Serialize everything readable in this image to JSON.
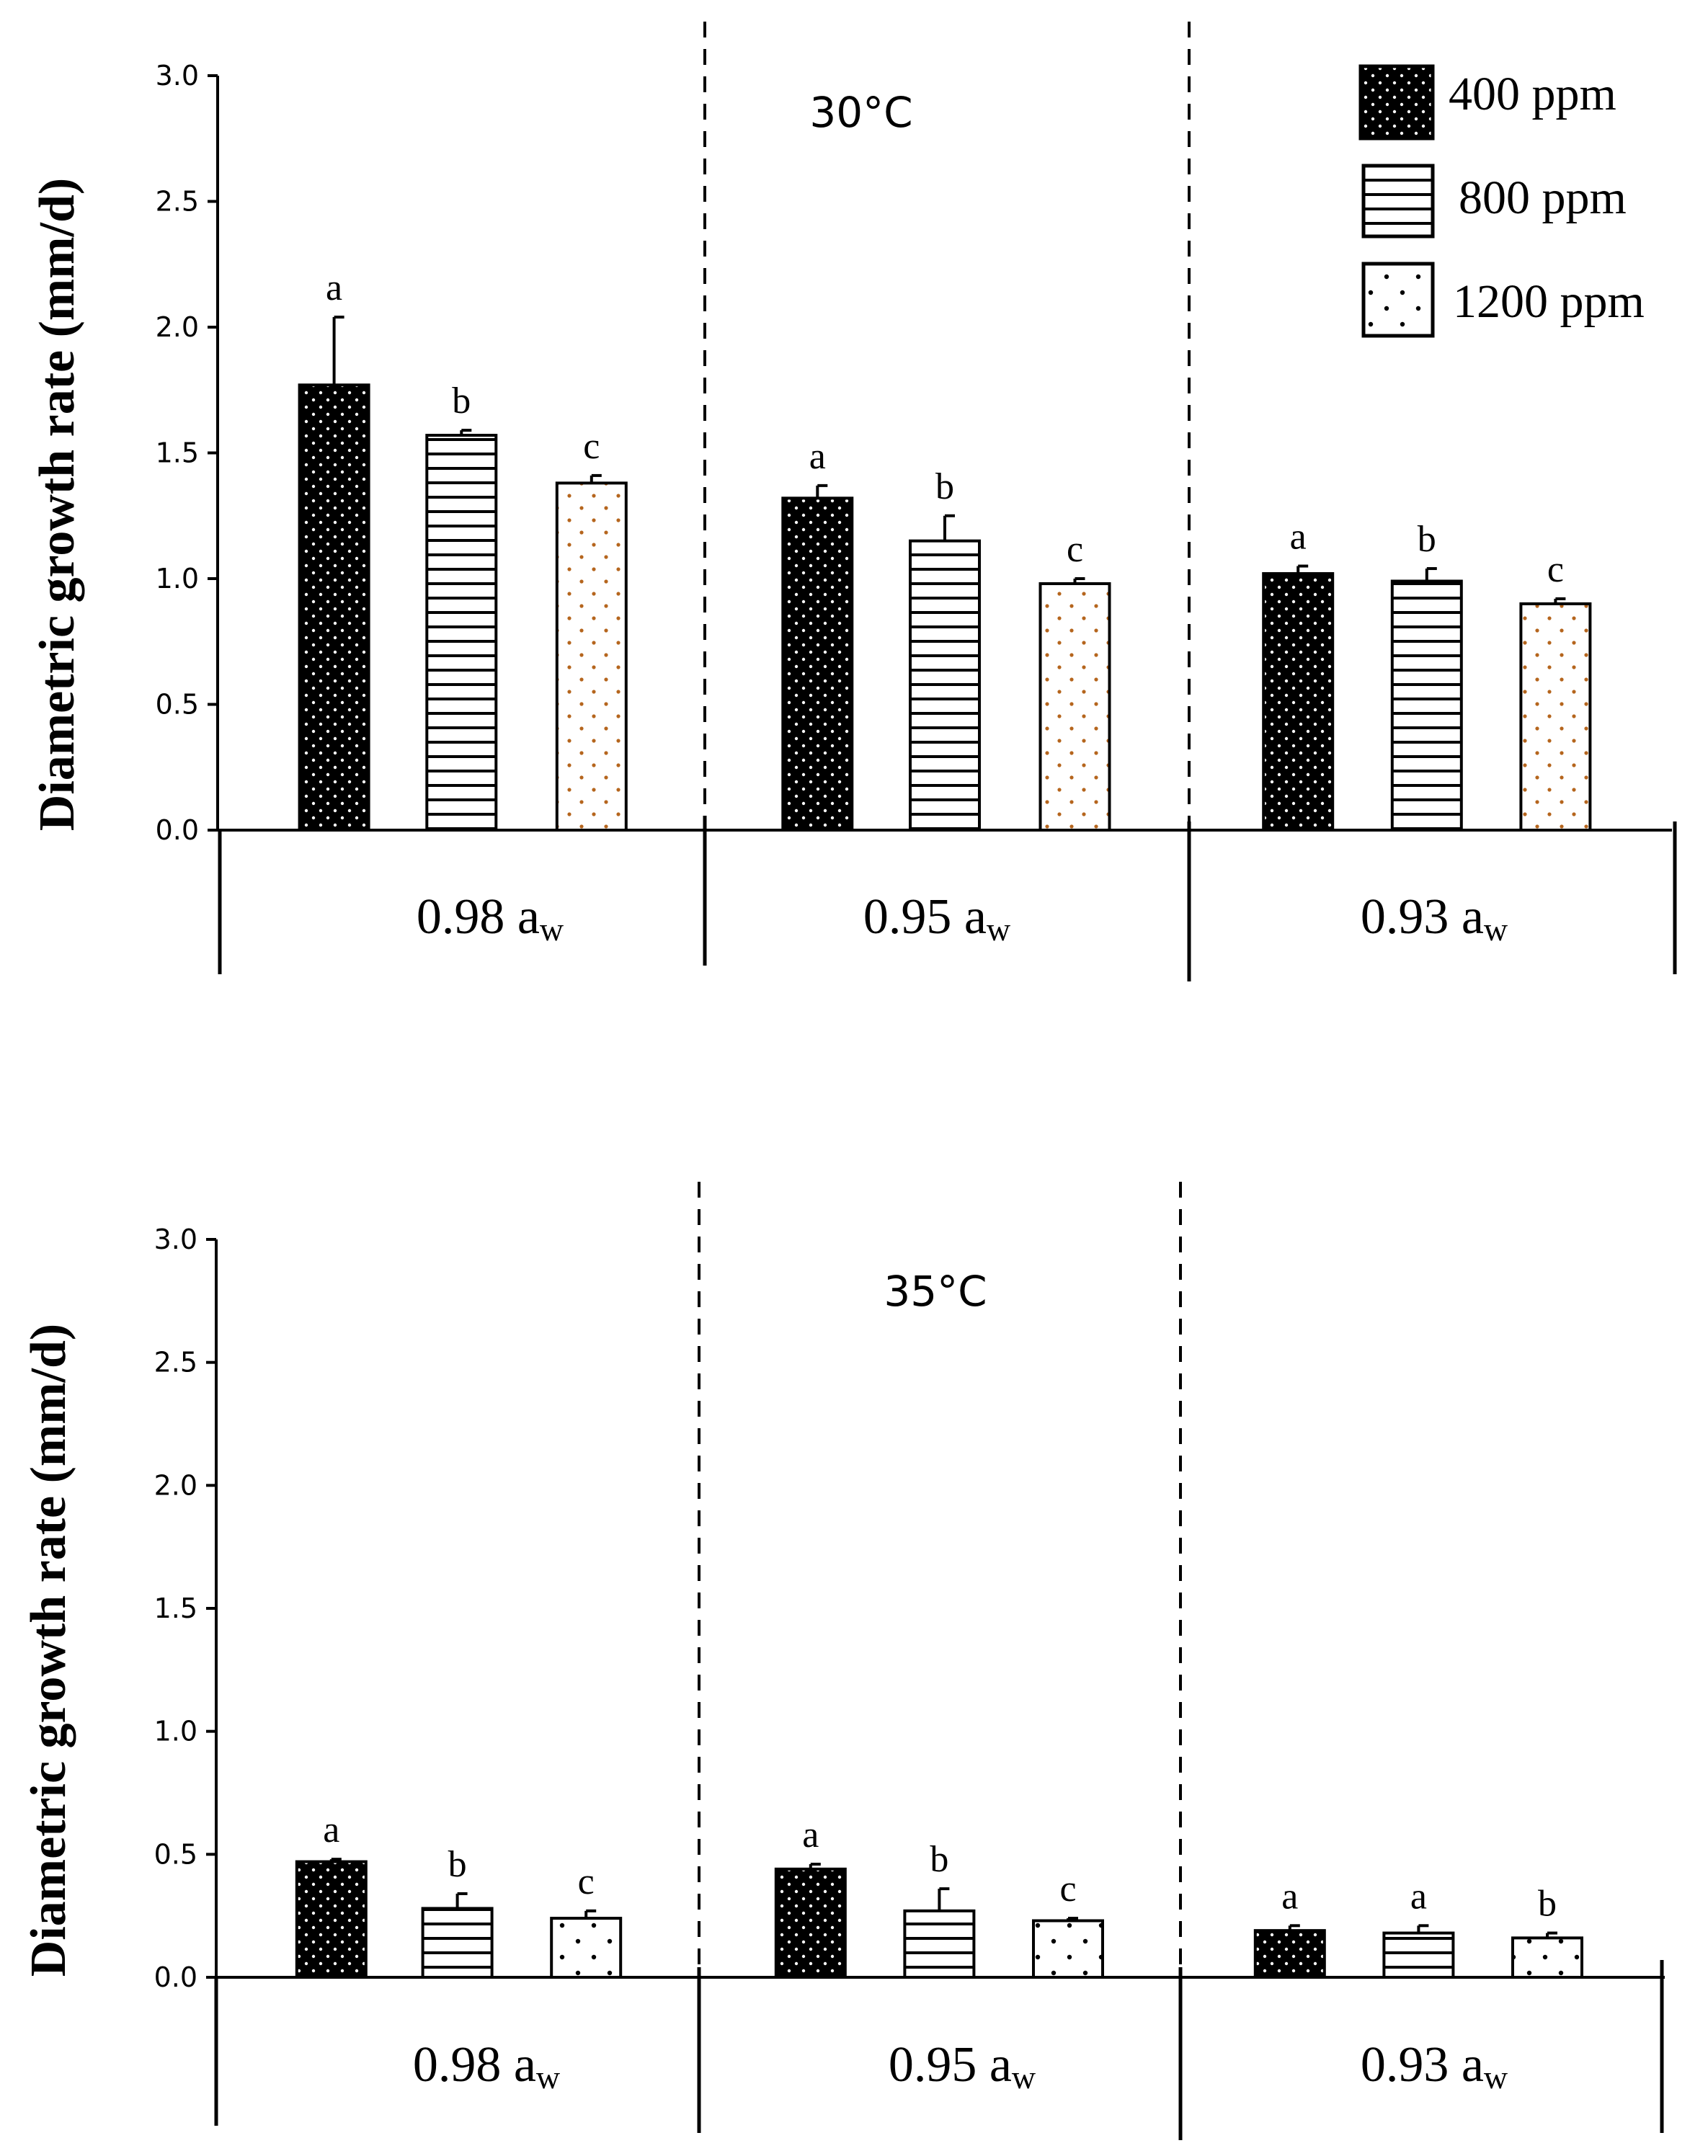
{
  "chart_data": [
    {
      "type": "bar",
      "annotation": "30°C",
      "ylabel": "Diametric growth rate (mm/d)",
      "ylim": [
        0,
        3.0
      ],
      "yticks": [
        "0.0",
        "0.5",
        "1.0",
        "1.5",
        "2.0",
        "2.5",
        "3.0"
      ],
      "categories": [
        {
          "main": "0.98 a",
          "sub": "w"
        },
        {
          "main": "0.95 a",
          "sub": "w"
        },
        {
          "main": "0.93 a",
          "sub": "w"
        }
      ],
      "series": [
        {
          "name": "400 ppm",
          "values": [
            1.77,
            1.32,
            1.02
          ],
          "errors": [
            0.27,
            0.05,
            0.03
          ],
          "letters": [
            "a",
            "a",
            "a"
          ]
        },
        {
          "name": "800 ppm",
          "values": [
            1.57,
            1.15,
            0.99
          ],
          "errors": [
            0.02,
            0.1,
            0.05
          ],
          "letters": [
            "b",
            "b",
            "b"
          ]
        },
        {
          "name": "1200 ppm",
          "values": [
            1.38,
            0.98,
            0.9
          ],
          "errors": [
            0.03,
            0.02,
            0.02
          ],
          "letters": [
            "c",
            "c",
            "c"
          ]
        }
      ],
      "legend": "top-right",
      "grid": false
    },
    {
      "type": "bar",
      "annotation": "35°C",
      "ylabel": "Diametric growth rate (mm/d)",
      "ylim": [
        0,
        3.0
      ],
      "yticks": [
        "0.0",
        "0.5",
        "1.0",
        "1.5",
        "2.0",
        "2.5",
        "3.0"
      ],
      "categories": [
        {
          "main": "0.98 a",
          "sub": "w"
        },
        {
          "main": "0.95 a",
          "sub": "w"
        },
        {
          "main": "0.93 a",
          "sub": "w"
        }
      ],
      "series": [
        {
          "name": "400 ppm",
          "values": [
            0.47,
            0.44,
            0.19
          ],
          "errors": [
            0.01,
            0.02,
            0.02
          ],
          "letters": [
            "a",
            "a",
            "a"
          ]
        },
        {
          "name": "800 ppm",
          "values": [
            0.28,
            0.27,
            0.18
          ],
          "errors": [
            0.06,
            0.09,
            0.03
          ],
          "letters": [
            "b",
            "b",
            "a"
          ]
        },
        {
          "name": "1200 ppm",
          "values": [
            0.24,
            0.23,
            0.16
          ],
          "errors": [
            0.03,
            0.01,
            0.02
          ],
          "letters": [
            "c",
            "c",
            "b"
          ]
        }
      ],
      "grid": false
    }
  ],
  "colors": {
    "400 ppm": "#000000",
    "800 ppm": "#ffffff",
    "1200 ppm": "#ffffff",
    "dots_1200_top": "#b5651d"
  }
}
